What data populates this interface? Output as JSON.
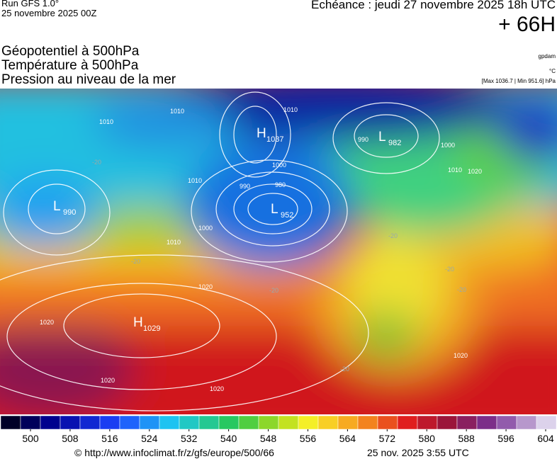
{
  "header": {
    "run": "Run GFS 1.0°",
    "run_date": "25 novembre 2025 00Z",
    "valid": "Echéance : jeudi 27 novembre 2025 18h UTC",
    "lead": "+ 66H",
    "layers": [
      "Géopotentiel à 500hPa",
      "Température à 500hPa",
      "Pression au niveau de la mer"
    ],
    "units": [
      "gpdam",
      "°C",
      "[Max 1036.7 | Min 951.6] hPa"
    ]
  },
  "map": {
    "centers": [
      {
        "letter": "H",
        "value": "1037"
      },
      {
        "letter": "L",
        "value": "982"
      },
      {
        "letter": "L",
        "value": "990"
      },
      {
        "letter": "L",
        "value": "952"
      },
      {
        "letter": "H",
        "value": "1029"
      }
    ],
    "isobar_labels": [
      "1010",
      "1010",
      "1000",
      "990",
      "980",
      "1010",
      "1000",
      "1010",
      "1010",
      "990",
      "1000",
      "1010",
      "1020",
      "1020",
      "1020",
      "1020",
      "1020",
      "1020"
    ],
    "temperature_labels": [
      "-20",
      "-20",
      "-20",
      "-20",
      "-20",
      "-20",
      "-20"
    ]
  },
  "colorbar": {
    "ticks": [
      500,
      508,
      516,
      524,
      532,
      540,
      548,
      556,
      564,
      572,
      580,
      588,
      596,
      604
    ]
  },
  "footer": {
    "url": "© http://www.infoclimat.fr/z/gfs/europe/500/66",
    "date": "25 nov. 2025  3:55 UTC"
  }
}
